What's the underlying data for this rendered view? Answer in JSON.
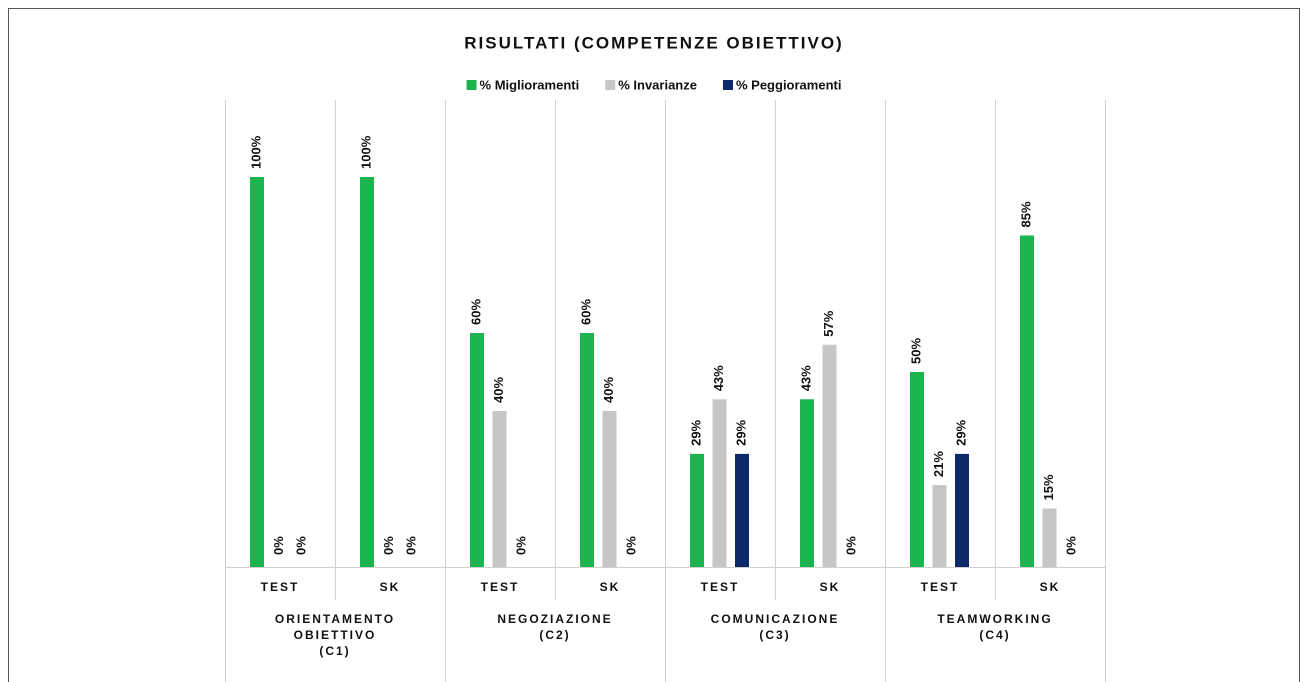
{
  "chart_data": {
    "type": "bar",
    "title": "RISULTATI (COMPETENZE OBIETTIVO)",
    "categories": [
      "TEST",
      "SK",
      "TEST",
      "SK",
      "TEST",
      "SK",
      "TEST",
      "SK"
    ],
    "groups": [
      [
        "ORIENTAMENTO",
        "OBIETTIVO",
        "(C1)"
      ],
      [
        "NEGOZIAZIONE",
        "(C2)"
      ],
      [
        "COMUNICAZIONE",
        "(C3)"
      ],
      [
        "TEAMWORKING",
        "(C4)"
      ]
    ],
    "series": [
      {
        "name": "% Miglioramenti",
        "color": "#1db34f",
        "values": [
          100,
          100,
          60,
          60,
          29,
          43,
          50,
          85
        ],
        "value_labels": [
          "100%",
          "100%",
          "60%",
          "60%",
          "29%",
          "43%",
          "50%",
          "85%"
        ]
      },
      {
        "name": "% Invarianze",
        "color": "#c6c6c6",
        "values": [
          0,
          0,
          40,
          40,
          43,
          57,
          21,
          15
        ],
        "value_labels": [
          "0%",
          "0%",
          "40%",
          "40%",
          "43%",
          "57%",
          "21%",
          "15%"
        ]
      },
      {
        "name": "% Peggioramenti",
        "color": "#0c2a6a",
        "values": [
          0,
          0,
          0,
          0,
          29,
          0,
          29,
          0
        ],
        "value_labels": [
          "0%",
          "0%",
          "0%",
          "0%",
          "29%",
          "0%",
          "29%",
          "0%"
        ]
      }
    ]
  }
}
